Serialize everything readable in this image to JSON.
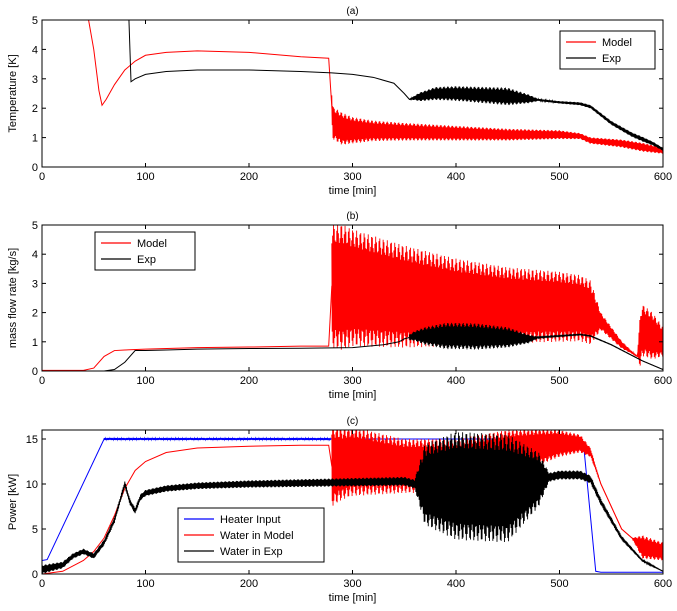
{
  "chart_data": [
    {
      "type": "line",
      "title": "(a)",
      "xlabel": "time [min]",
      "ylabel": "Temperature [K]",
      "xlim": [
        0,
        600
      ],
      "ylim": [
        0,
        5
      ],
      "xticks": [
        "0",
        "100",
        "200",
        "300",
        "400",
        "500",
        "600"
      ],
      "yticks": [
        "0",
        "1",
        "2",
        "3",
        "4",
        "5"
      ],
      "grid": false,
      "legend_position": "top-right",
      "series": [
        {
          "name": "Model",
          "color": "#ff0000",
          "x": [
            45,
            50,
            55,
            58,
            62,
            70,
            80,
            90,
            100,
            120,
            150,
            200,
            250,
            277,
            281,
            290,
            300,
            350,
            400,
            450,
            500,
            520,
            530,
            560,
            600
          ],
          "y": [
            5.0,
            4.0,
            2.6,
            2.1,
            2.3,
            2.8,
            3.3,
            3.6,
            3.8,
            3.9,
            3.95,
            3.9,
            3.75,
            3.7,
            1.5,
            1.3,
            1.25,
            1.2,
            1.15,
            1.1,
            1.1,
            1.05,
            0.9,
            0.8,
            0.55
          ],
          "band_x": [
            280,
            290,
            300,
            320,
            350,
            400,
            450,
            500,
            520,
            580,
            600
          ],
          "band_amplitude": [
            0.55,
            0.55,
            0.45,
            0.35,
            0.3,
            0.25,
            0.2,
            0.15,
            0.1,
            0.15,
            0.1
          ]
        },
        {
          "name": "Exp",
          "color": "#000000",
          "x": [
            84,
            86,
            90,
            100,
            120,
            150,
            200,
            250,
            280,
            300,
            320,
            340,
            350,
            355,
            360,
            380,
            400,
            450,
            500,
            520,
            530,
            550,
            570,
            590,
            600
          ],
          "y": [
            5.0,
            2.9,
            3.0,
            3.15,
            3.25,
            3.3,
            3.3,
            3.25,
            3.2,
            3.15,
            3.05,
            2.85,
            2.5,
            2.3,
            2.35,
            2.5,
            2.5,
            2.4,
            2.2,
            2.15,
            2.05,
            1.5,
            1.1,
            0.8,
            0.6
          ],
          "band_x": [
            355,
            365,
            380,
            400,
            450,
            470,
            480,
            580,
            600
          ],
          "band_amplitude": [
            0.0,
            0.15,
            0.22,
            0.25,
            0.3,
            0.15,
            0.03,
            0.08,
            0.05
          ]
        }
      ]
    },
    {
      "type": "line",
      "title": "(b)",
      "xlabel": "time [min]",
      "ylabel": "mass flow rate [kg/s]",
      "xlim": [
        0,
        600
      ],
      "ylim": [
        0,
        5
      ],
      "xticks": [
        "0",
        "100",
        "200",
        "300",
        "400",
        "500",
        "600"
      ],
      "yticks": [
        "0",
        "1",
        "2",
        "3",
        "4",
        "5"
      ],
      "grid": false,
      "legend_position": "top-left",
      "series": [
        {
          "name": "Model",
          "color": "#ff0000",
          "x": [
            0,
            40,
            50,
            60,
            70,
            80,
            100,
            150,
            200,
            250,
            277,
            280,
            300,
            350,
            400,
            450,
            500,
            520,
            530,
            540,
            560,
            575,
            580,
            600
          ],
          "y": [
            0.02,
            0.02,
            0.1,
            0.5,
            0.7,
            0.72,
            0.75,
            0.8,
            0.82,
            0.85,
            0.85,
            2.9,
            2.85,
            2.55,
            2.35,
            2.25,
            2.2,
            2.15,
            2.0,
            1.7,
            0.9,
            0.5,
            1.4,
            1.0
          ],
          "band_x": [
            280,
            290,
            300,
            350,
            400,
            450,
            500,
            530,
            540,
            575,
            578,
            590,
            600
          ],
          "band_amplitude": [
            2.1,
            2.15,
            2.0,
            1.75,
            1.5,
            1.3,
            1.2,
            1.1,
            0.3,
            0.0,
            0.9,
            0.8,
            0.5
          ]
        },
        {
          "name": "Exp",
          "color": "#000000",
          "x": [
            0,
            60,
            70,
            80,
            90,
            100,
            120,
            150,
            200,
            250,
            300,
            330,
            345,
            350,
            360,
            400,
            450,
            470,
            480,
            500,
            520,
            530,
            550,
            580,
            600
          ],
          "y": [
            0.0,
            0.0,
            0.05,
            0.3,
            0.7,
            0.7,
            0.72,
            0.75,
            0.77,
            0.78,
            0.8,
            0.9,
            1.0,
            1.1,
            1.2,
            1.2,
            1.15,
            1.1,
            1.15,
            1.2,
            1.25,
            1.2,
            0.9,
            0.35,
            0.05
          ],
          "band_x": [
            355,
            370,
            390,
            420,
            450,
            470,
            480,
            600
          ],
          "band_amplitude": [
            0.1,
            0.3,
            0.45,
            0.45,
            0.35,
            0.15,
            0.02,
            0.0
          ]
        }
      ]
    },
    {
      "type": "line",
      "title": "(c)",
      "xlabel": "time [min]",
      "ylabel": "Power [kW]",
      "xlim": [
        0,
        600
      ],
      "ylim": [
        0,
        16
      ],
      "xticks": [
        "0",
        "100",
        "200",
        "300",
        "400",
        "500",
        "600"
      ],
      "yticks": [
        "0",
        "5",
        "10",
        "15"
      ],
      "grid": false,
      "legend_position": "bottom-center",
      "series": [
        {
          "name": "Heater Input",
          "color": "#0000ff",
          "x": [
            0,
            5,
            60,
            65,
            100,
            200,
            277,
            520,
            524,
            535,
            540,
            600
          ],
          "y": [
            1.5,
            1.6,
            15.0,
            15.0,
            15.0,
            15.0,
            15.0,
            15.0,
            13.5,
            0.3,
            0.2,
            0.2
          ],
          "band_x": [
            60,
            277,
            280
          ],
          "band_amplitude": [
            0.12,
            0.12,
            0.0
          ]
        },
        {
          "name": "Water in Model",
          "color": "#ff0000",
          "x": [
            0,
            20,
            40,
            50,
            60,
            70,
            80,
            90,
            100,
            120,
            150,
            200,
            250,
            277,
            280,
            300,
            350,
            400,
            450,
            500,
            520,
            530,
            540,
            560,
            580,
            600
          ],
          "y": [
            0.0,
            0.3,
            1.5,
            2.5,
            4.0,
            6.5,
            9.5,
            11.5,
            12.5,
            13.5,
            14.0,
            14.2,
            14.3,
            14.3,
            12.0,
            12.5,
            12.0,
            12.0,
            13.5,
            14.5,
            14.5,
            13.5,
            10.0,
            5.0,
            3.0,
            2.5
          ],
          "band_x": [
            280,
            290,
            320,
            350,
            400,
            450,
            480,
            500,
            520,
            530,
            540,
            570,
            580,
            600
          ],
          "band_amplitude": [
            4.5,
            4.0,
            3.5,
            3.0,
            3.0,
            2.5,
            2.0,
            1.5,
            1.0,
            0.5,
            0.0,
            0.0,
            1.3,
            1.0
          ]
        },
        {
          "name": "Water in Exp",
          "color": "#000000",
          "x": [
            0,
            20,
            30,
            40,
            50,
            60,
            70,
            80,
            85,
            90,
            95,
            100,
            120,
            150,
            200,
            250,
            300,
            350,
            360,
            400,
            450,
            480,
            500,
            520,
            530,
            540,
            560,
            580,
            600
          ],
          "y": [
            0.5,
            1.0,
            2.0,
            2.5,
            2.0,
            3.5,
            6.0,
            10.0,
            8.0,
            7.0,
            8.5,
            9.0,
            9.5,
            9.8,
            10.0,
            10.1,
            10.2,
            10.3,
            10.0,
            9.8,
            9.5,
            10.5,
            11.0,
            11.0,
            10.5,
            8.0,
            4.0,
            1.5,
            0.3
          ],
          "band_x": [
            0,
            30,
            360,
            370,
            400,
            450,
            480,
            490,
            520,
            600
          ],
          "band_amplitude": [
            0.5,
            0.3,
            0.5,
            4.5,
            6.0,
            6.0,
            3.0,
            0.5,
            0.5,
            0.0
          ]
        }
      ]
    }
  ]
}
